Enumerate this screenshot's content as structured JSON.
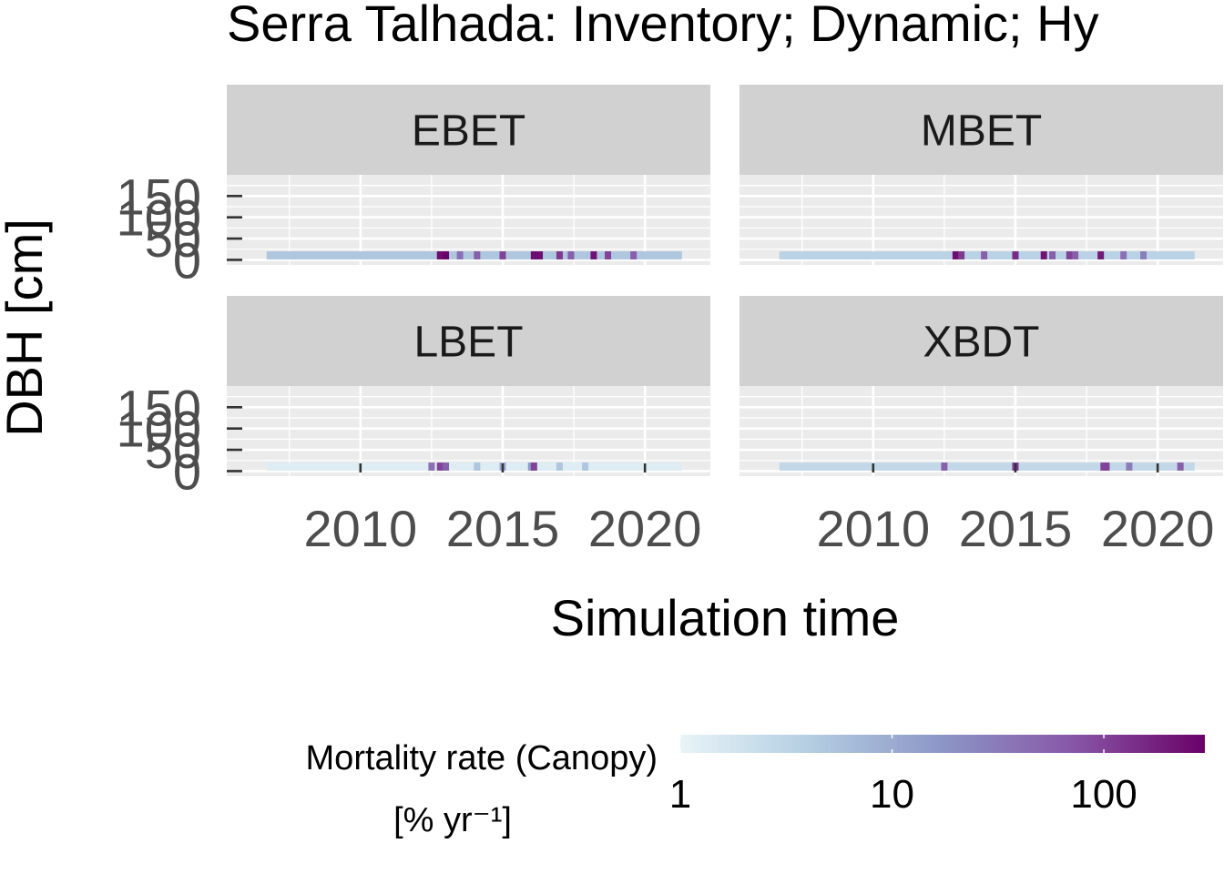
{
  "chart_data": {
    "type": "heatmap",
    "title": "Serra Talhada: Inventory; Dynamic; Hy",
    "xlabel": "Simulation time",
    "ylabel": "DBH [cm]",
    "xlim": [
      2005.3,
      2022.3
    ],
    "ylim": [
      -12,
      200
    ],
    "x_ticks": [
      2010,
      2015,
      2020
    ],
    "x_tick_labels": [
      "2010",
      "2015",
      "2020"
    ],
    "y_ticks": [
      0,
      50,
      100,
      150
    ],
    "y_tick_labels": [
      "0",
      "50",
      "100",
      "150"
    ],
    "grid": true,
    "legend": {
      "title_line1": "Mortality rate (Canopy)",
      "title_line2": "[% yr⁻¹]",
      "position": "bottom",
      "scale": "log",
      "range": [
        1,
        300
      ],
      "ticks": [
        1,
        10,
        100
      ],
      "tick_labels": [
        "1",
        "10",
        "100"
      ],
      "colors": [
        "#e8f4f8",
        "#b3cde2",
        "#8c96c6",
        "#8856a7",
        "#6a0168"
      ]
    },
    "band_dbh": [
      1,
      20
    ],
    "time_range": [
      2006.7,
      2021.3
    ],
    "panels": [
      {
        "label": "EBET",
        "base_rate": 5,
        "events": [
          {
            "x": 2012.8,
            "rate": 250
          },
          {
            "x": 2013.0,
            "rate": 300
          },
          {
            "x": 2013.5,
            "rate": 40
          },
          {
            "x": 2014.1,
            "rate": 60
          },
          {
            "x": 2015.0,
            "rate": 100
          },
          {
            "x": 2016.1,
            "rate": 250
          },
          {
            "x": 2016.3,
            "rate": 250
          },
          {
            "x": 2017.0,
            "rate": 120
          },
          {
            "x": 2017.4,
            "rate": 60
          },
          {
            "x": 2018.2,
            "rate": 220
          },
          {
            "x": 2018.7,
            "rate": 100
          },
          {
            "x": 2019.6,
            "rate": 60
          }
        ]
      },
      {
        "label": "MBET",
        "base_rate": 3.5,
        "events": [
          {
            "x": 2012.9,
            "rate": 250
          },
          {
            "x": 2013.1,
            "rate": 120
          },
          {
            "x": 2013.9,
            "rate": 60
          },
          {
            "x": 2015.0,
            "rate": 150
          },
          {
            "x": 2016.0,
            "rate": 220
          },
          {
            "x": 2016.3,
            "rate": 60
          },
          {
            "x": 2016.9,
            "rate": 100
          },
          {
            "x": 2017.1,
            "rate": 60
          },
          {
            "x": 2018.0,
            "rate": 200
          },
          {
            "x": 2018.8,
            "rate": 40
          },
          {
            "x": 2019.5,
            "rate": 30
          }
        ]
      },
      {
        "label": "LBET",
        "base_rate": 1.3,
        "events": [
          {
            "x": 2012.5,
            "rate": 40
          },
          {
            "x": 2012.8,
            "rate": 100
          },
          {
            "x": 2013.0,
            "rate": 60
          },
          {
            "x": 2014.1,
            "rate": 5
          },
          {
            "x": 2015.0,
            "rate": 10
          },
          {
            "x": 2016.0,
            "rate": 15
          },
          {
            "x": 2016.1,
            "rate": 100
          },
          {
            "x": 2017.0,
            "rate": 5
          },
          {
            "x": 2017.9,
            "rate": 5
          }
        ]
      },
      {
        "label": "XBDT",
        "base_rate": 2.8,
        "events": [
          {
            "x": 2012.5,
            "rate": 60
          },
          {
            "x": 2015.0,
            "rate": 120
          },
          {
            "x": 2018.1,
            "rate": 100
          },
          {
            "x": 2018.2,
            "rate": 100
          },
          {
            "x": 2019.0,
            "rate": 30
          },
          {
            "x": 2020.8,
            "rate": 60
          }
        ]
      }
    ]
  }
}
